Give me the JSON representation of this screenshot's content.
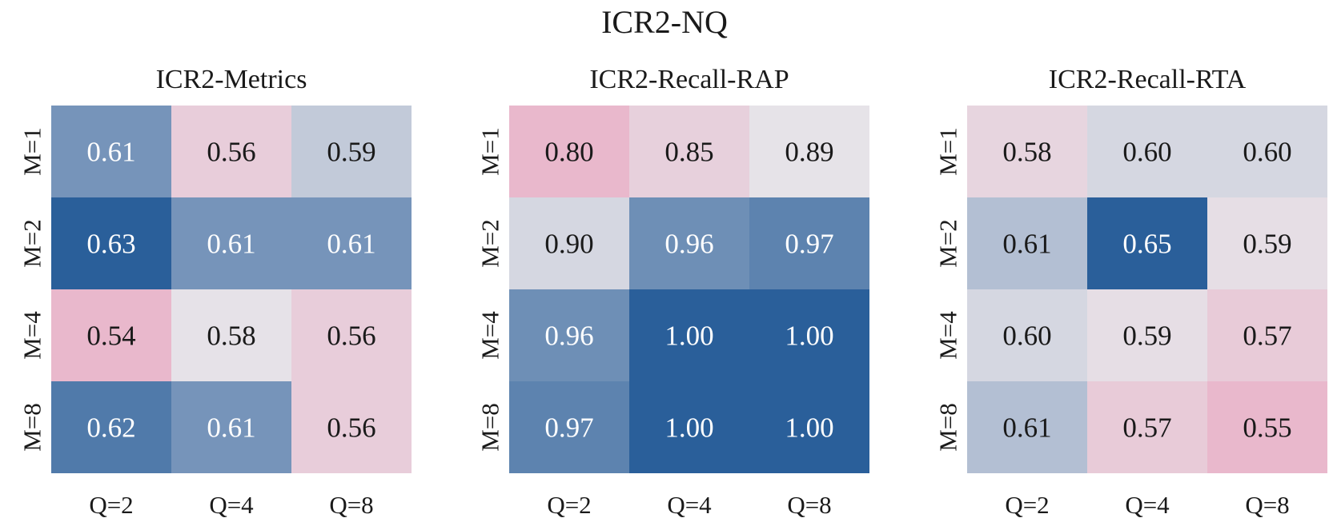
{
  "suptitle": "ICR2-NQ",
  "chart_data": [
    {
      "type": "heatmap",
      "title": "ICR2-Metrics",
      "x_categories": [
        "Q=2",
        "Q=4",
        "Q=8"
      ],
      "y_categories": [
        "M=1",
        "M=2",
        "M=4",
        "M=8"
      ],
      "values": [
        [
          0.61,
          0.56,
          0.59
        ],
        [
          0.63,
          0.61,
          0.61
        ],
        [
          0.54,
          0.58,
          0.56
        ],
        [
          0.62,
          0.61,
          0.56
        ]
      ],
      "value_range": [
        0.54,
        0.63
      ],
      "colormap": {
        "low": "#e9b8cc",
        "mid": "#e6e3e8",
        "high": "#2a5f9a"
      },
      "colorbar": false
    },
    {
      "type": "heatmap",
      "title": "ICR2-Recall-RAP",
      "x_categories": [
        "Q=2",
        "Q=4",
        "Q=8"
      ],
      "y_categories": [
        "M=1",
        "M=2",
        "M=4",
        "M=8"
      ],
      "values": [
        [
          0.8,
          0.85,
          0.89
        ],
        [
          0.9,
          0.96,
          0.97
        ],
        [
          0.96,
          1.0,
          1.0
        ],
        [
          0.97,
          1.0,
          1.0
        ]
      ],
      "value_range": [
        0.8,
        1.0
      ],
      "colormap": {
        "low": "#e9b8cc",
        "mid": "#e6e3e8",
        "high": "#2a5f9a"
      },
      "colorbar": false
    },
    {
      "type": "heatmap",
      "title": "ICR2-Recall-RTA",
      "x_categories": [
        "Q=2",
        "Q=4",
        "Q=8"
      ],
      "y_categories": [
        "M=1",
        "M=2",
        "M=4",
        "M=8"
      ],
      "values": [
        [
          0.58,
          0.6,
          0.6
        ],
        [
          0.61,
          0.65,
          0.59
        ],
        [
          0.6,
          0.59,
          0.57
        ],
        [
          0.61,
          0.57,
          0.55
        ]
      ],
      "value_range": [
        0.55,
        0.65
      ],
      "colormap": {
        "low": "#e9b8cc",
        "mid": "#e6e3e8",
        "high": "#2a5f9a"
      },
      "colorbar": false
    }
  ]
}
